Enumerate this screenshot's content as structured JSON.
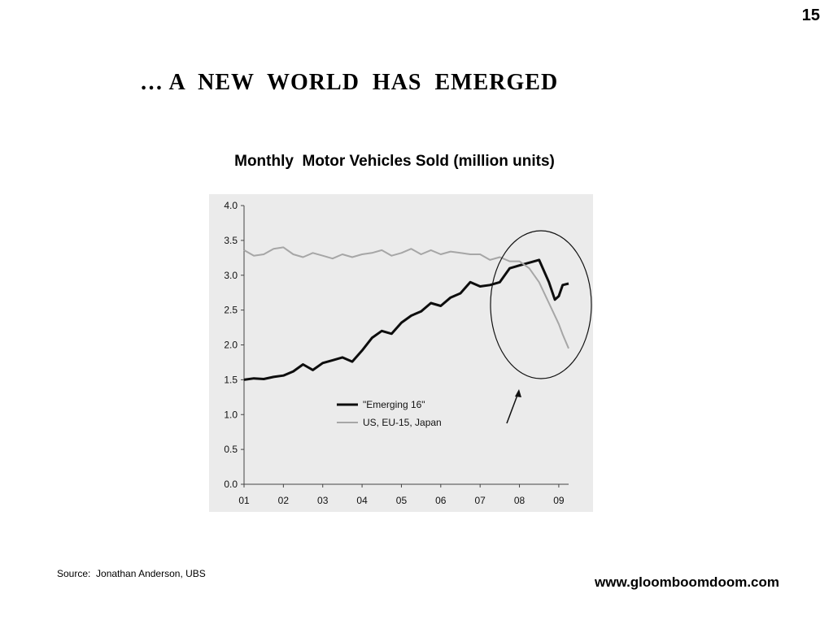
{
  "slide": {
    "page_number": "15",
    "title": "… A  NEW  WORLD  HAS  EMERGED",
    "source": "Source:  Jonathan Anderson, UBS",
    "website": "www.gloomboomdoom.com"
  },
  "colors": {
    "emerging": "#0d0d0d",
    "developed": "#a6a6a6",
    "panel_background": "#ebebeb",
    "axis": "#444444"
  },
  "chart_data": {
    "type": "line",
    "title": "Monthly  Motor Vehicles Sold (million units)",
    "xlabel": "",
    "ylabel": "",
    "x_tick_labels": [
      "01",
      "02",
      "03",
      "04",
      "05",
      "06",
      "07",
      "08",
      "09"
    ],
    "y_tick_labels": [
      "4.0",
      "3.5",
      "3.0",
      "2.5",
      "2.0",
      "1.5",
      "1.0",
      "0.5",
      "0.0"
    ],
    "ylim": [
      0,
      4
    ],
    "xlim": [
      2001.0,
      2009.25
    ],
    "grid": false,
    "legend_position": "lower-center",
    "annotation": "circle highlighting 2007-2009 with arrow pointing to it",
    "series": [
      {
        "name": "\"Emerging 16\"",
        "color_key": "emerging",
        "points": [
          [
            2001.0,
            1.5
          ],
          [
            2001.25,
            1.52
          ],
          [
            2001.5,
            1.51
          ],
          [
            2001.75,
            1.54
          ],
          [
            2002.0,
            1.56
          ],
          [
            2002.25,
            1.62
          ],
          [
            2002.5,
            1.72
          ],
          [
            2002.75,
            1.64
          ],
          [
            2003.0,
            1.74
          ],
          [
            2003.25,
            1.78
          ],
          [
            2003.5,
            1.82
          ],
          [
            2003.75,
            1.76
          ],
          [
            2004.0,
            1.92
          ],
          [
            2004.25,
            2.1
          ],
          [
            2004.5,
            2.2
          ],
          [
            2004.75,
            2.16
          ],
          [
            2005.0,
            2.32
          ],
          [
            2005.25,
            2.42
          ],
          [
            2005.5,
            2.48
          ],
          [
            2005.75,
            2.6
          ],
          [
            2006.0,
            2.56
          ],
          [
            2006.25,
            2.68
          ],
          [
            2006.5,
            2.74
          ],
          [
            2006.75,
            2.9
          ],
          [
            2007.0,
            2.84
          ],
          [
            2007.25,
            2.86
          ],
          [
            2007.5,
            2.9
          ],
          [
            2007.75,
            3.1
          ],
          [
            2008.0,
            3.14
          ],
          [
            2008.25,
            3.18
          ],
          [
            2008.5,
            3.22
          ],
          [
            2008.75,
            2.9
          ],
          [
            2008.9,
            2.65
          ],
          [
            2009.0,
            2.7
          ],
          [
            2009.1,
            2.86
          ],
          [
            2009.25,
            2.88
          ]
        ]
      },
      {
        "name": "US, EU-15, Japan",
        "color_key": "developed",
        "points": [
          [
            2001.0,
            3.36
          ],
          [
            2001.25,
            3.28
          ],
          [
            2001.5,
            3.3
          ],
          [
            2001.75,
            3.38
          ],
          [
            2002.0,
            3.4
          ],
          [
            2002.25,
            3.3
          ],
          [
            2002.5,
            3.26
          ],
          [
            2002.75,
            3.32
          ],
          [
            2003.0,
            3.28
          ],
          [
            2003.25,
            3.24
          ],
          [
            2003.5,
            3.3
          ],
          [
            2003.75,
            3.26
          ],
          [
            2004.0,
            3.3
          ],
          [
            2004.25,
            3.32
          ],
          [
            2004.5,
            3.36
          ],
          [
            2004.75,
            3.28
          ],
          [
            2005.0,
            3.32
          ],
          [
            2005.25,
            3.38
          ],
          [
            2005.5,
            3.3
          ],
          [
            2005.75,
            3.36
          ],
          [
            2006.0,
            3.3
          ],
          [
            2006.25,
            3.34
          ],
          [
            2006.5,
            3.32
          ],
          [
            2006.75,
            3.3
          ],
          [
            2007.0,
            3.3
          ],
          [
            2007.25,
            3.22
          ],
          [
            2007.5,
            3.26
          ],
          [
            2007.75,
            3.2
          ],
          [
            2008.0,
            3.2
          ],
          [
            2008.25,
            3.1
          ],
          [
            2008.5,
            2.9
          ],
          [
            2008.75,
            2.6
          ],
          [
            2009.0,
            2.3
          ],
          [
            2009.1,
            2.15
          ],
          [
            2009.25,
            1.95
          ]
        ]
      }
    ]
  }
}
